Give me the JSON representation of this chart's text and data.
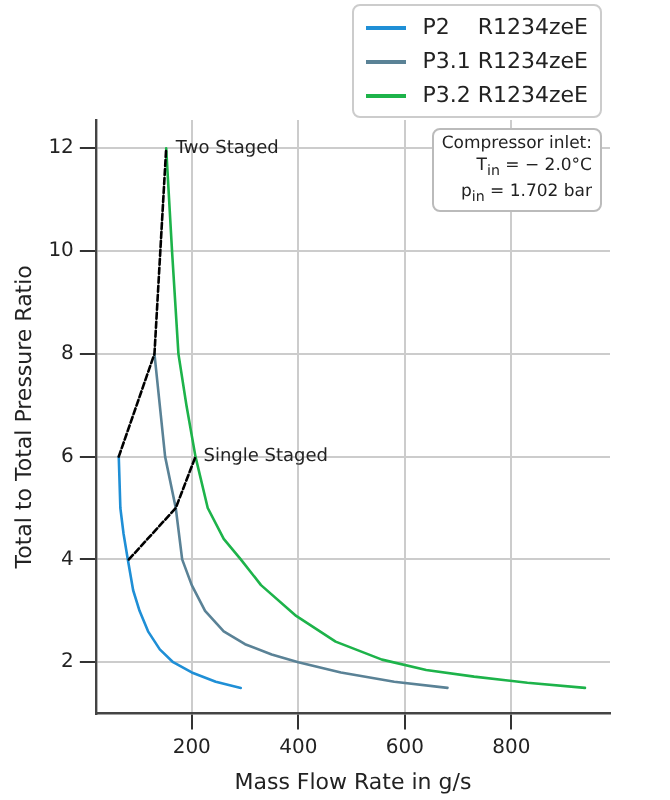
{
  "chart_data": {
    "type": "line",
    "xlabel": "Mass Flow Rate in g/s",
    "ylabel": "Total to Total Pressure Ratio",
    "xlim": [
      20,
      985
    ],
    "ylim": [
      1,
      12.55
    ],
    "xticks": [
      200,
      400,
      600,
      800
    ],
    "yticks": [
      2,
      4,
      6,
      8,
      10,
      12
    ],
    "grid": true,
    "legend": "top right",
    "marker": "none",
    "line_style": "solid",
    "series": [
      {
        "name": "P2    R1234zeE",
        "color": "#1f8fd6",
        "x": [
          63,
          66,
          72,
          80,
          90,
          102,
          118,
          140,
          165,
          200,
          245,
          292
        ],
        "values": [
          6,
          5,
          4.5,
          4,
          3.4,
          3,
          2.6,
          2.25,
          2,
          1.8,
          1.62,
          1.5
        ]
      },
      {
        "name": "P3.1 R1234zeE",
        "color": "#5a8296",
        "x": [
          130,
          150,
          170,
          182,
          200,
          225,
          260,
          300,
          350,
          400,
          480,
          580,
          680
        ],
        "values": [
          8,
          6,
          5,
          4,
          3.5,
          3,
          2.6,
          2.35,
          2.15,
          2,
          1.8,
          1.62,
          1.5
        ]
      },
      {
        "name": "P3.2 R1234zeE",
        "color": "#1db34a",
        "x": [
          152,
          163,
          175,
          190,
          207,
          230,
          260,
          292,
          330,
          396,
          470,
          557,
          640,
          730,
          830,
          938
        ],
        "values": [
          12,
          10,
          8,
          7,
          6,
          5,
          4.4,
          4,
          3.5,
          2.9,
          2.4,
          2.05,
          1.85,
          1.72,
          1.6,
          1.5
        ]
      },
      {
        "color": "#000000",
        "line_style": "dashed",
        "x": [
          63,
          130,
          152
        ],
        "values": [
          6,
          8,
          12
        ]
      },
      {
        "color": "#000000",
        "line_style": "dashed",
        "x": [
          82,
          170,
          207
        ],
        "values": [
          4,
          5,
          6
        ]
      }
    ],
    "annotations": [
      {
        "text": "Two Staged",
        "x": 170,
        "y": 12
      },
      {
        "text": "Single Staged",
        "x": 222,
        "y": 6
      },
      "Compressor inlet:\nT$_{in}$ = − 2.0°C\np$_{in}$ = 1.702 bar"
    ]
  }
}
